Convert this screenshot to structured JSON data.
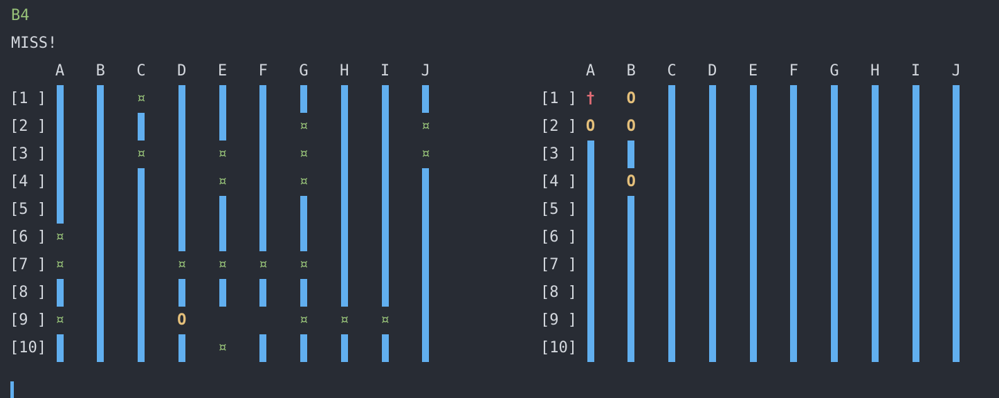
{
  "status": {
    "move": "B4",
    "result": "MISS!"
  },
  "colors": {
    "background": "#282c34",
    "text": "#d4d8de",
    "move": "#98c379",
    "water": "#61afef",
    "miss": "#98c379",
    "hit": "#e5c07b",
    "sunk": "#e06c75"
  },
  "legend": {
    "~": "water-bar",
    "¤": "miss-marker",
    "O": "hit-marker",
    "†": "sunk-marker",
    " ": "empty-cell"
  },
  "boards": {
    "columns": [
      "A",
      "B",
      "C",
      "D",
      "E",
      "F",
      "G",
      "H",
      "I",
      "J"
    ],
    "row_labels": [
      "[1 ]",
      "[2 ]",
      "[3 ]",
      "[4 ]",
      "[5 ]",
      "[6 ]",
      "[7 ]",
      "[8 ]",
      "[9 ]",
      "[10]"
    ],
    "left": {
      "rows": [
        "~~¤~~~~~~~",
        "~~~~~~¤~~¤",
        "~~¤~¤~¤~~¤",
        "~~~~¤~¤~~~",
        "~~~~~~~~~~",
        "¤~~~~~~~~~",
        "¤~~¤¤¤¤~~~",
        "~~~~~~~~~~",
        "¤~~O  ¤¤¤~",
        "~~~~¤~~~~~"
      ]
    },
    "right": {
      "rows": [
        "†O~~~~~~~~",
        "OO~~~~~~~~",
        "~~~~~~~~~~",
        "~O~~~~~~~~",
        "~~~~~~~~~~",
        "~~~~~~~~~~",
        "~~~~~~~~~~",
        "~~~~~~~~~~",
        "~~~~~~~~~~",
        "~~~~~~~~~~"
      ]
    }
  },
  "cursor_visible": true
}
